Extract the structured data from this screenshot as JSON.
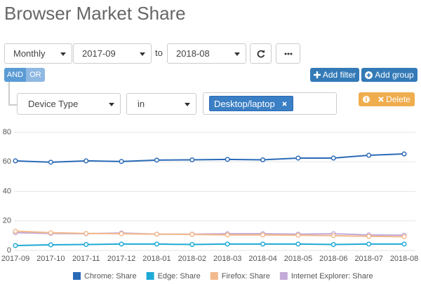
{
  "header": {
    "title": "Browser Market Share"
  },
  "controls": {
    "period": "Monthly",
    "from": "2017-09",
    "to_label": "to",
    "to": "2018-08"
  },
  "filter": {
    "and": "AND",
    "or": "OR",
    "add_filter": "Add filter",
    "add_group": "Add group",
    "field": "Device Type",
    "operator": "in",
    "value": "Desktop/laptop",
    "delete": "Delete"
  },
  "chart_data": {
    "type": "line",
    "categories": [
      "2017-09",
      "2017-10",
      "2017-11",
      "2017-12",
      "2018-01",
      "2018-02",
      "2018-03",
      "2018-04",
      "2018-05",
      "2018-06",
      "2018-07",
      "2018-08"
    ],
    "series": [
      {
        "name": "Chrome: Share",
        "color": "#2a6ab7",
        "values": [
          60.6,
          59.7,
          60.6,
          60.2,
          61.1,
          61.3,
          61.6,
          61.3,
          62.5,
          62.5,
          64.4,
          65.3
        ]
      },
      {
        "name": "Edge: Share",
        "color": "#1eaad6",
        "values": [
          3.3,
          3.8,
          4.0,
          4.3,
          4.3,
          4.0,
          4.3,
          4.3,
          4.3,
          4.0,
          4.3,
          4.3
        ]
      },
      {
        "name": "Firefox: Share",
        "color": "#f2b98c",
        "values": [
          13.0,
          12.0,
          11.5,
          11.3,
          11.0,
          10.8,
          10.5,
          10.5,
          10.3,
          10.0,
          9.5,
          9.3
        ]
      },
      {
        "name": "Internet Explorer: Share",
        "color": "#c3aad8",
        "values": [
          12.0,
          11.5,
          11.3,
          11.8,
          11.0,
          11.0,
          11.3,
          11.3,
          11.0,
          11.3,
          10.5,
          10.3
        ]
      }
    ],
    "ylim": [
      0,
      80
    ],
    "yticks": [
      0,
      20,
      40,
      60,
      80
    ],
    "grid": true
  }
}
